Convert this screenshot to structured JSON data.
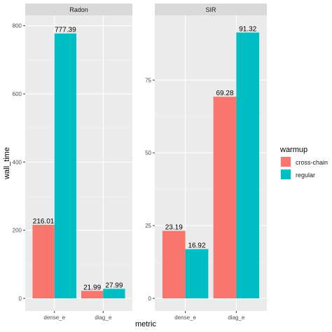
{
  "chart_data": [
    {
      "type": "bar",
      "panel_title": "Radon",
      "categories": [
        "dense_e",
        "diag_e"
      ],
      "series": [
        {
          "name": "cross-chain",
          "values": [
            216.01,
            21.99
          ],
          "labels": [
            "216.01",
            "21.99"
          ]
        },
        {
          "name": "regular",
          "values": [
            777.39,
            27.99
          ],
          "labels": [
            "777.39",
            "27.99"
          ]
        }
      ],
      "ylim": [
        0,
        820
      ],
      "yticks": [
        0,
        200,
        400,
        600,
        800
      ],
      "yticklabels": [
        "0",
        "200",
        "400",
        "600",
        "800"
      ]
    },
    {
      "type": "bar",
      "panel_title": "SIR",
      "categories": [
        "dense_e",
        "diag_e"
      ],
      "series": [
        {
          "name": "cross-chain",
          "values": [
            23.19,
            69.28
          ],
          "labels": [
            "23.19",
            "69.28"
          ]
        },
        {
          "name": "regular",
          "values": [
            16.92,
            91.32
          ],
          "labels": [
            "16.92",
            "91.32"
          ]
        }
      ],
      "ylim": [
        0,
        96
      ],
      "yticks": [
        0,
        25,
        50,
        75
      ],
      "yticklabels": [
        "0",
        "25",
        "50",
        "75"
      ]
    }
  ],
  "axes": {
    "xlabel": "metric",
    "ylabel": "wall_time"
  },
  "legend": {
    "title": "warmup",
    "position": "right",
    "items": [
      {
        "label": "cross-chain",
        "color": "#F8766D"
      },
      {
        "label": "regular",
        "color": "#00BFC4"
      }
    ]
  },
  "style": {
    "panel_background": "#EBEBEB",
    "strip_background": "#D9D9D9",
    "grid_major": "#FFFFFF",
    "series_colors": [
      "#F8766D",
      "#00BFC4"
    ]
  }
}
